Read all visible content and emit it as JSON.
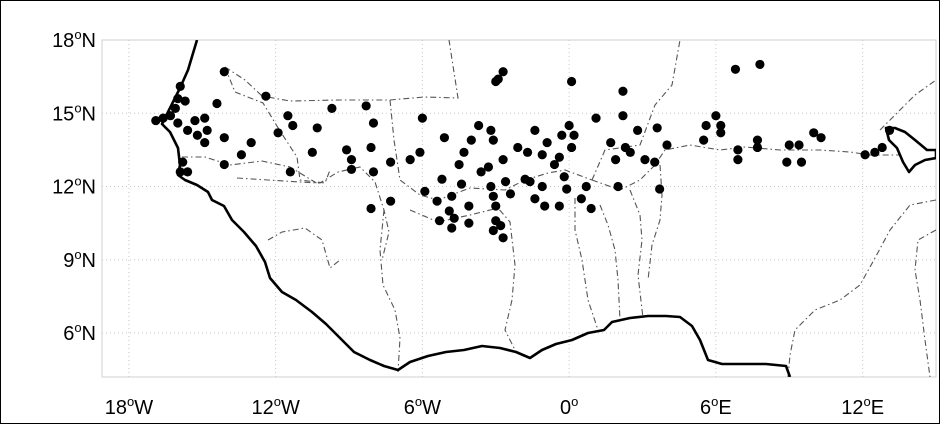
{
  "map": {
    "type": "scatter",
    "lat_labels": [
      {
        "value": 18,
        "text": "18",
        "hemi": "N"
      },
      {
        "value": 15,
        "text": "15",
        "hemi": "N"
      },
      {
        "value": 12,
        "text": "12",
        "hemi": "N"
      },
      {
        "value": 9,
        "text": "9",
        "hemi": "N"
      },
      {
        "value": 6,
        "text": "6",
        "hemi": "N"
      }
    ],
    "lon_labels": [
      {
        "value": -18,
        "text": "18",
        "hemi": "W"
      },
      {
        "value": -12,
        "text": "12",
        "hemi": "W"
      },
      {
        "value": -6,
        "text": "6",
        "hemi": "W"
      },
      {
        "value": 0,
        "text": "0",
        "hemi": ""
      },
      {
        "value": 6,
        "text": "6",
        "hemi": "E"
      },
      {
        "value": 12,
        "text": "12",
        "hemi": "E"
      }
    ],
    "degree_symbol": "o",
    "xlim": [
      -19.1,
      15
    ],
    "ylim": [
      4.2,
      18
    ],
    "grid": true,
    "colors": {
      "points": "#000000",
      "coast": "#000000",
      "borders": "#555555",
      "grid": "#c8c8c8"
    }
  },
  "chart_data": {
    "type": "scatter",
    "xlabel": "",
    "ylabel": "",
    "xlim": [
      -19.1,
      15
    ],
    "ylim": [
      4.2,
      18
    ],
    "points": [
      [
        -16.9,
        14.7
      ],
      [
        -16.6,
        14.8
      ],
      [
        -16.3,
        14.9
      ],
      [
        -16.1,
        15.2
      ],
      [
        -16.0,
        15.6
      ],
      [
        -15.9,
        16.1
      ],
      [
        -15.7,
        15.5
      ],
      [
        -16.0,
        14.6
      ],
      [
        -15.6,
        14.3
      ],
      [
        -15.3,
        14.7
      ],
      [
        -15.2,
        14.1
      ],
      [
        -14.9,
        13.8
      ],
      [
        -14.8,
        14.3
      ],
      [
        -14.9,
        14.8
      ],
      [
        -15.8,
        13.0
      ],
      [
        -15.9,
        12.6
      ],
      [
        -15.6,
        12.6
      ],
      [
        -14.4,
        15.4
      ],
      [
        -14.1,
        16.7
      ],
      [
        -14.1,
        14.0
      ],
      [
        -14.1,
        12.9
      ],
      [
        -13.4,
        13.3
      ],
      [
        -13.0,
        13.8
      ],
      [
        -12.4,
        15.7
      ],
      [
        -11.9,
        14.2
      ],
      [
        -11.5,
        14.9
      ],
      [
        -11.3,
        14.5
      ],
      [
        -11.4,
        12.6
      ],
      [
        -10.5,
        13.4
      ],
      [
        -10.3,
        14.4
      ],
      [
        -9.7,
        15.2
      ],
      [
        -9.1,
        13.5
      ],
      [
        -8.9,
        13.1
      ],
      [
        -8.9,
        12.7
      ],
      [
        -8.3,
        15.3
      ],
      [
        -8.0,
        14.6
      ],
      [
        -8.1,
        13.6
      ],
      [
        -8.0,
        12.6
      ],
      [
        -8.1,
        11.1
      ],
      [
        -7.3,
        13.0
      ],
      [
        -7.3,
        11.4
      ],
      [
        -6.5,
        13.1
      ],
      [
        -6.1,
        13.4
      ],
      [
        -6.0,
        14.8
      ],
      [
        -5.9,
        11.8
      ],
      [
        -5.4,
        11.4
      ],
      [
        -5.3,
        10.6
      ],
      [
        -5.2,
        12.3
      ],
      [
        -5.1,
        14.0
      ],
      [
        -4.9,
        11.0
      ],
      [
        -4.8,
        10.3
      ],
      [
        -4.7,
        10.7
      ],
      [
        -4.8,
        11.6
      ],
      [
        -4.5,
        12.9
      ],
      [
        -4.4,
        12.1
      ],
      [
        -4.3,
        13.4
      ],
      [
        -4.1,
        11.2
      ],
      [
        -4.1,
        10.5
      ],
      [
        -4.0,
        13.9
      ],
      [
        -3.7,
        14.5
      ],
      [
        -3.6,
        12.6
      ],
      [
        -3.3,
        12.8
      ],
      [
        -3.2,
        14.3
      ],
      [
        -3.1,
        13.9
      ],
      [
        -3.2,
        12.0
      ],
      [
        -3.1,
        11.6
      ],
      [
        -3.0,
        11.2
      ],
      [
        -3.0,
        10.6
      ],
      [
        -3.1,
        10.2
      ],
      [
        -2.8,
        10.4
      ],
      [
        -2.7,
        9.9
      ],
      [
        -2.7,
        16.7
      ],
      [
        -2.9,
        16.4
      ],
      [
        -3.0,
        16.3
      ],
      [
        -2.7,
        13.1
      ],
      [
        -2.6,
        12.2
      ],
      [
        -2.4,
        11.7
      ],
      [
        -2.1,
        13.6
      ],
      [
        -1.8,
        12.3
      ],
      [
        -1.6,
        12.2
      ],
      [
        -1.7,
        13.4
      ],
      [
        -1.4,
        11.5
      ],
      [
        -1.4,
        14.3
      ],
      [
        -1.1,
        13.3
      ],
      [
        -1.1,
        12.0
      ],
      [
        -1.0,
        11.2
      ],
      [
        -0.9,
        13.8
      ],
      [
        -0.6,
        12.9
      ],
      [
        -0.4,
        11.2
      ],
      [
        -0.4,
        13.2
      ],
      [
        -0.3,
        14.1
      ],
      [
        -0.2,
        12.4
      ],
      [
        -0.1,
        11.9
      ],
      [
        0.0,
        14.5
      ],
      [
        0.1,
        13.6
      ],
      [
        0.1,
        16.3
      ],
      [
        0.2,
        14.1
      ],
      [
        0.5,
        11.5
      ],
      [
        0.7,
        12.0
      ],
      [
        0.9,
        11.1
      ],
      [
        1.1,
        14.8
      ],
      [
        1.7,
        13.8
      ],
      [
        1.9,
        13.1
      ],
      [
        2.0,
        12.0
      ],
      [
        2.2,
        14.9
      ],
      [
        2.3,
        13.6
      ],
      [
        2.2,
        15.9
      ],
      [
        2.5,
        13.4
      ],
      [
        2.8,
        14.3
      ],
      [
        3.1,
        13.1
      ],
      [
        3.5,
        13.0
      ],
      [
        3.6,
        14.4
      ],
      [
        3.7,
        11.9
      ],
      [
        4.0,
        13.7
      ],
      [
        5.5,
        13.9
      ],
      [
        5.6,
        14.5
      ],
      [
        6.0,
        14.9
      ],
      [
        6.2,
        14.5
      ],
      [
        6.2,
        14.2
      ],
      [
        6.8,
        16.8
      ],
      [
        6.9,
        13.5
      ],
      [
        6.9,
        13.1
      ],
      [
        7.8,
        17.0
      ],
      [
        7.7,
        13.9
      ],
      [
        7.7,
        13.6
      ],
      [
        8.9,
        13.0
      ],
      [
        9.0,
        13.7
      ],
      [
        9.4,
        13.7
      ],
      [
        9.5,
        13.0
      ],
      [
        10.0,
        14.2
      ],
      [
        10.3,
        14.0
      ],
      [
        12.1,
        13.3
      ],
      [
        12.5,
        13.4
      ],
      [
        12.8,
        13.6
      ],
      [
        13.1,
        14.3
      ]
    ]
  }
}
